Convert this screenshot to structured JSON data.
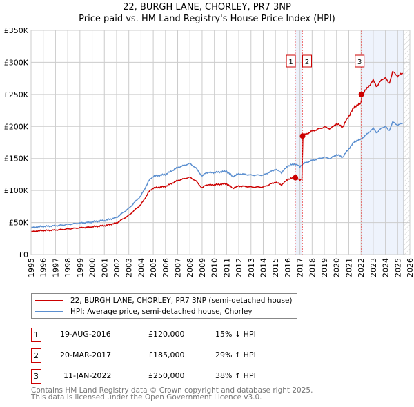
{
  "chart_data": {
    "type": "line",
    "title": "22, BURGH LANE, CHORLEY, PR7 3NP",
    "subtitle": "Price paid vs. HM Land Registry's House Price Index (HPI)",
    "xlim": [
      1995,
      2026
    ],
    "ylim": [
      0,
      350000
    ],
    "y_ticks": [
      {
        "v": 0,
        "l": "£0"
      },
      {
        "v": 50000,
        "l": "£50K"
      },
      {
        "v": 100000,
        "l": "£100K"
      },
      {
        "v": 150000,
        "l": "£150K"
      },
      {
        "v": 200000,
        "l": "£200K"
      },
      {
        "v": 250000,
        "l": "£250K"
      },
      {
        "v": 300000,
        "l": "£300K"
      },
      {
        "v": 350000,
        "l": "£350K"
      }
    ],
    "x_ticks": [
      "1995",
      "1996",
      "1997",
      "1998",
      "1999",
      "2000",
      "2001",
      "2002",
      "2003",
      "2004",
      "2005",
      "2006",
      "2007",
      "2008",
      "2009",
      "2010",
      "2011",
      "2012",
      "2013",
      "2014",
      "2015",
      "2016",
      "2017",
      "2018",
      "2019",
      "2020",
      "2021",
      "2022",
      "2023",
      "2024",
      "2025",
      "2026"
    ],
    "hpi": [
      [
        1995,
        42
      ],
      [
        1996,
        44
      ],
      [
        1997,
        45
      ],
      [
        1998,
        47
      ],
      [
        1999,
        49
      ],
      [
        2000,
        51
      ],
      [
        2001,
        53
      ],
      [
        2002,
        58
      ],
      [
        2003,
        72
      ],
      [
        2004,
        92
      ],
      [
        2004.7,
        117
      ],
      [
        2005,
        122
      ],
      [
        2006,
        125
      ],
      [
        2007,
        136
      ],
      [
        2008,
        142
      ],
      [
        2008.5,
        135
      ],
      [
        2009,
        122
      ],
      [
        2009.3,
        128
      ],
      [
        2010,
        128
      ],
      [
        2011,
        130
      ],
      [
        2011.5,
        122
      ],
      [
        2012,
        126
      ],
      [
        2013,
        124
      ],
      [
        2014,
        124
      ],
      [
        2015,
        133
      ],
      [
        2015.5,
        128
      ],
      [
        2016,
        138
      ],
      [
        2016.6,
        142
      ],
      [
        2017,
        137
      ],
      [
        2017.2,
        141
      ],
      [
        2018,
        147
      ],
      [
        2019,
        152
      ],
      [
        2019.5,
        150
      ],
      [
        2020,
        156
      ],
      [
        2020.5,
        152
      ],
      [
        2021,
        165
      ],
      [
        2021.5,
        177
      ],
      [
        2022,
        180
      ],
      [
        2022.5,
        188
      ],
      [
        2023,
        197
      ],
      [
        2023.3,
        190
      ],
      [
        2023.7,
        198
      ],
      [
        2024,
        200
      ],
      [
        2024.3,
        193
      ],
      [
        2024.6,
        207
      ],
      [
        2025,
        202
      ],
      [
        2025.4,
        205
      ]
    ],
    "sales": [
      {
        "n": "1",
        "x": 2016.63,
        "v": 120000
      },
      {
        "n": "2",
        "x": 2017.22,
        "v": 185000
      },
      {
        "n": "3",
        "x": 2022.03,
        "v": 250000
      }
    ],
    "data_end": 2025.5,
    "colors": {
      "property": "#cc0000",
      "hpi": "#5b8fd0"
    }
  },
  "legend": {
    "property": "22, BURGH LANE, CHORLEY, PR7 3NP (semi-detached house)",
    "hpi": "HPI: Average price, semi-detached house, Chorley"
  },
  "transactions": [
    {
      "n": "1",
      "date": "19-AUG-2016",
      "price": "£120,000",
      "delta": "15% ↓ HPI"
    },
    {
      "n": "2",
      "date": "20-MAR-2017",
      "price": "£185,000",
      "delta": "29% ↑ HPI"
    },
    {
      "n": "3",
      "date": "11-JAN-2022",
      "price": "£250,000",
      "delta": "38% ↑ HPI"
    }
  ],
  "footer": {
    "line1": "Contains HM Land Registry data © Crown copyright and database right 2025.",
    "line2": "This data is licensed under the Open Government Licence v3.0."
  }
}
